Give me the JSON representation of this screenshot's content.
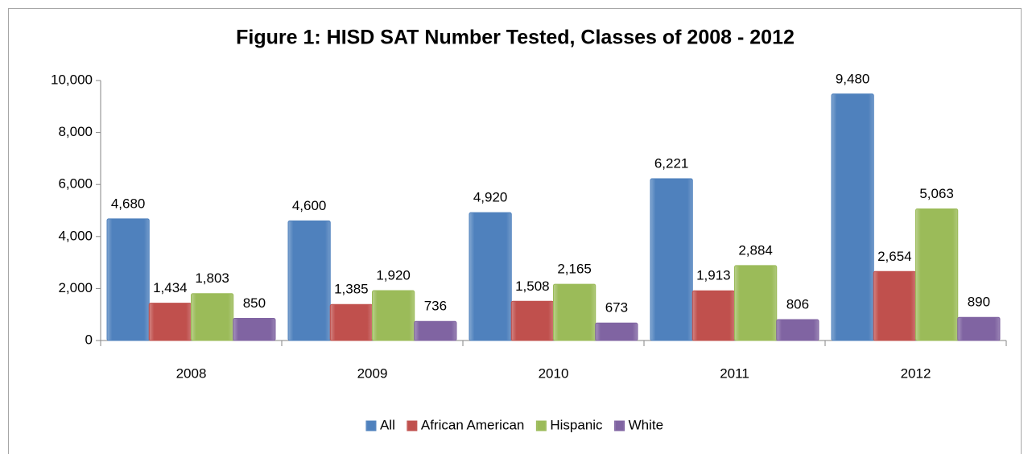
{
  "chart_data": {
    "type": "bar",
    "title": "Figure 1: HISD SAT Number Tested, Classes of 2008 - 2012",
    "categories": [
      "2008",
      "2009",
      "2010",
      "2011",
      "2012"
    ],
    "series": [
      {
        "name": "All",
        "color": "#4f81bd",
        "values": [
          4680,
          4600,
          4920,
          6221,
          9480
        ],
        "value_labels": [
          "4,680",
          "4,600",
          "4,920",
          "6,221",
          "9,480"
        ]
      },
      {
        "name": "African American",
        "color": "#c0504d",
        "values": [
          1434,
          1385,
          1508,
          1913,
          2654
        ],
        "value_labels": [
          "1,434",
          "1,385",
          "1,508",
          "1,913",
          "2,654"
        ]
      },
      {
        "name": "Hispanic",
        "color": "#9bbb59",
        "values": [
          1803,
          1920,
          2165,
          2884,
          5063
        ],
        "value_labels": [
          "1,803",
          "1,920",
          "2,165",
          "2,884",
          "5,063"
        ]
      },
      {
        "name": "White",
        "color": "#8064a2",
        "values": [
          850,
          736,
          673,
          806,
          890
        ],
        "value_labels": [
          "850",
          "736",
          "673",
          "806",
          "890"
        ]
      }
    ],
    "ylim": [
      0,
      10000
    ],
    "yticks": [
      0,
      {
        "value": 2000,
        "label": "2,000"
      },
      {
        "value": 4000,
        "label": "4,000"
      },
      {
        "value": 6000,
        "label": "6,000"
      },
      {
        "value": 8000,
        "label": "8,000"
      },
      {
        "value": 10000,
        "label": "10,000"
      }
    ],
    "legend": "bottom"
  }
}
